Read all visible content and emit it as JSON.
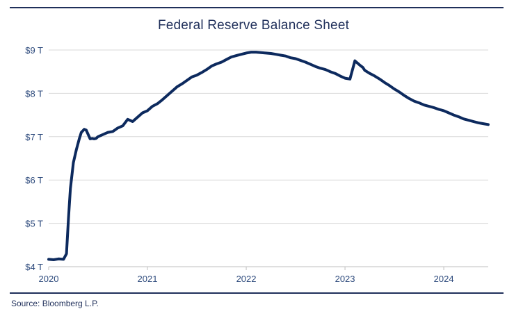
{
  "chart_data": {
    "type": "line",
    "title": "Federal Reserve Balance Sheet",
    "xlabel": "",
    "ylabel": "",
    "y_unit": "trillion USD",
    "ylim": [
      4,
      9
    ],
    "xlim": [
      2020.0,
      2024.45
    ],
    "grid": "horizontal",
    "legend": "none",
    "line_color": "#0d2a5e",
    "y_ticks": [
      {
        "value": 4,
        "label": "$4 T"
      },
      {
        "value": 5,
        "label": "$5 T"
      },
      {
        "value": 6,
        "label": "$6 T"
      },
      {
        "value": 7,
        "label": "$7 T"
      },
      {
        "value": 8,
        "label": "$8 T"
      },
      {
        "value": 9,
        "label": "$9 T"
      }
    ],
    "x_ticks": [
      {
        "value": 2020,
        "label": "2020"
      },
      {
        "value": 2021,
        "label": "2021"
      },
      {
        "value": 2022,
        "label": "2022"
      },
      {
        "value": 2023,
        "label": "2023"
      },
      {
        "value": 2024,
        "label": "2024"
      }
    ],
    "series": [
      {
        "x": [
          2020.0,
          2020.05,
          2020.1,
          2020.15,
          2020.18,
          2020.2,
          2020.22,
          2020.25,
          2020.28,
          2020.31,
          2020.33,
          2020.36,
          2020.38,
          2020.4,
          2020.42,
          2020.44,
          2020.46,
          2020.48,
          2020.5,
          2020.55,
          2020.6,
          2020.65,
          2020.7,
          2020.75,
          2020.8,
          2020.85,
          2020.9,
          2020.95,
          2021.0,
          2021.05,
          2021.1,
          2021.15,
          2021.2,
          2021.25,
          2021.3,
          2021.35,
          2021.4,
          2021.45,
          2021.5,
          2021.55,
          2021.6,
          2021.65,
          2021.7,
          2021.75,
          2021.8,
          2021.85,
          2021.9,
          2021.95,
          2022.0,
          2022.05,
          2022.1,
          2022.15,
          2022.2,
          2022.25,
          2022.3,
          2022.35,
          2022.4,
          2022.45,
          2022.5,
          2022.55,
          2022.6,
          2022.65,
          2022.7,
          2022.75,
          2022.8,
          2022.85,
          2022.9,
          2022.95,
          2023.0,
          2023.05,
          2023.1,
          2023.15,
          2023.18,
          2023.2,
          2023.25,
          2023.3,
          2023.35,
          2023.4,
          2023.45,
          2023.5,
          2023.55,
          2023.6,
          2023.65,
          2023.7,
          2023.75,
          2023.8,
          2023.85,
          2023.9,
          2023.95,
          2024.0,
          2024.05,
          2024.1,
          2024.15,
          2024.2,
          2024.25,
          2024.3,
          2024.35,
          2024.4,
          2024.45
        ],
        "values": [
          4.17,
          4.16,
          4.18,
          4.17,
          4.3,
          5.1,
          5.8,
          6.4,
          6.7,
          6.95,
          7.1,
          7.17,
          7.15,
          7.05,
          6.95,
          6.96,
          6.95,
          6.96,
          7.0,
          7.05,
          7.1,
          7.12,
          7.2,
          7.25,
          7.4,
          7.35,
          7.45,
          7.55,
          7.6,
          7.7,
          7.76,
          7.85,
          7.95,
          8.05,
          8.15,
          8.22,
          8.3,
          8.38,
          8.42,
          8.48,
          8.55,
          8.63,
          8.68,
          8.72,
          8.78,
          8.84,
          8.87,
          8.9,
          8.93,
          8.95,
          8.95,
          8.94,
          8.93,
          8.92,
          8.9,
          8.88,
          8.86,
          8.82,
          8.8,
          8.76,
          8.72,
          8.67,
          8.62,
          8.58,
          8.55,
          8.5,
          8.46,
          8.4,
          8.35,
          8.33,
          8.75,
          8.65,
          8.6,
          8.53,
          8.46,
          8.4,
          8.33,
          8.25,
          8.18,
          8.1,
          8.03,
          7.95,
          7.88,
          7.82,
          7.78,
          7.73,
          7.7,
          7.67,
          7.63,
          7.6,
          7.55,
          7.5,
          7.46,
          7.41,
          7.38,
          7.35,
          7.32,
          7.3,
          7.28
        ]
      }
    ]
  },
  "source_text": "Source: Bloomberg L.P."
}
